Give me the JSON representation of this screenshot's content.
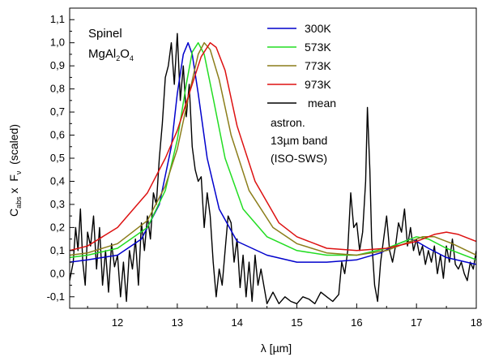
{
  "chart_data": {
    "type": "line",
    "title": "",
    "xlabel": "λ [µm]",
    "ylabel": {
      "main": "C",
      "sub1": "abs",
      "mid": " x  F",
      "sub2": "ν",
      "tail": "  (scaled)"
    },
    "xlim": [
      11.2,
      18
    ],
    "ylim": [
      -0.15,
      1.15
    ],
    "x_ticks": [
      12,
      13,
      14,
      15,
      16,
      17,
      18
    ],
    "y_ticks": [
      -0.1,
      0.0,
      0.1,
      0.2,
      0.3,
      0.4,
      0.5,
      0.6,
      0.7,
      0.8,
      0.9,
      1.0,
      1.1
    ],
    "y_tick_labels": [
      "-0,1",
      "0,0",
      "0,1",
      "0,2",
      "0,3",
      "0,4",
      "0,5",
      "0,6",
      "0,7",
      "0,8",
      "0,9",
      "1,0",
      "1,1"
    ],
    "annotation": {
      "line1": "Spinel",
      "formula_base": "MgAl",
      "formula_sub1": "2",
      "formula_mid": "O",
      "formula_sub2": "4"
    },
    "legend_note": [
      "astron.",
      "13µm band",
      "(ISO-SWS)"
    ],
    "series": [
      {
        "name": "300K",
        "color": "#0000cc",
        "x": [
          11.2,
          11.5,
          12.0,
          12.4,
          12.7,
          12.9,
          13.0,
          13.1,
          13.18,
          13.25,
          13.35,
          13.5,
          13.7,
          14.0,
          14.5,
          15.0,
          15.5,
          16.0,
          16.4,
          16.7,
          16.9,
          17.0,
          17.2,
          17.5,
          18.0
        ],
        "values": [
          0.05,
          0.06,
          0.08,
          0.15,
          0.3,
          0.55,
          0.78,
          0.95,
          1.0,
          0.95,
          0.78,
          0.5,
          0.28,
          0.14,
          0.08,
          0.05,
          0.05,
          0.06,
          0.09,
          0.13,
          0.15,
          0.14,
          0.11,
          0.07,
          0.04
        ]
      },
      {
        "name": "573K",
        "color": "#22dd22",
        "x": [
          11.2,
          11.5,
          12.0,
          12.5,
          12.8,
          13.0,
          13.15,
          13.25,
          13.35,
          13.45,
          13.6,
          13.8,
          14.1,
          14.5,
          15.0,
          15.5,
          16.0,
          16.5,
          16.8,
          17.0,
          17.2,
          17.5,
          18.0
        ],
        "values": [
          0.07,
          0.08,
          0.11,
          0.2,
          0.36,
          0.58,
          0.82,
          0.96,
          1.0,
          0.95,
          0.76,
          0.5,
          0.28,
          0.16,
          0.1,
          0.08,
          0.08,
          0.11,
          0.14,
          0.16,
          0.15,
          0.11,
          0.06
        ]
      },
      {
        "name": "773K",
        "color": "#8b7d1a",
        "x": [
          11.2,
          11.5,
          12.0,
          12.5,
          12.8,
          13.0,
          13.2,
          13.35,
          13.45,
          13.55,
          13.7,
          13.9,
          14.2,
          14.6,
          15.0,
          15.5,
          16.0,
          16.5,
          16.9,
          17.1,
          17.3,
          17.6,
          18.0
        ],
        "values": [
          0.08,
          0.09,
          0.13,
          0.23,
          0.38,
          0.54,
          0.78,
          0.95,
          1.0,
          0.97,
          0.84,
          0.6,
          0.36,
          0.2,
          0.13,
          0.09,
          0.08,
          0.1,
          0.14,
          0.16,
          0.16,
          0.13,
          0.08
        ]
      },
      {
        "name": "973K",
        "color": "#dd1111",
        "x": [
          11.2,
          11.5,
          12.0,
          12.5,
          12.8,
          13.0,
          13.2,
          13.4,
          13.55,
          13.65,
          13.8,
          14.0,
          14.3,
          14.7,
          15.0,
          15.5,
          16.0,
          16.5,
          17.0,
          17.3,
          17.5,
          17.7,
          18.0
        ],
        "values": [
          0.1,
          0.12,
          0.2,
          0.35,
          0.5,
          0.62,
          0.78,
          0.94,
          1.0,
          0.98,
          0.88,
          0.64,
          0.4,
          0.22,
          0.16,
          0.11,
          0.1,
          0.11,
          0.14,
          0.17,
          0.18,
          0.17,
          0.14
        ]
      },
      {
        "name": "mean",
        "color": "#000000",
        "x": [
          11.2,
          11.26,
          11.3,
          11.34,
          11.38,
          11.42,
          11.46,
          11.5,
          11.55,
          11.6,
          11.65,
          11.7,
          11.75,
          11.8,
          11.85,
          11.9,
          11.95,
          12.0,
          12.05,
          12.1,
          12.15,
          12.2,
          12.25,
          12.3,
          12.35,
          12.4,
          12.45,
          12.5,
          12.55,
          12.6,
          12.65,
          12.7,
          12.75,
          12.8,
          12.85,
          12.9,
          12.95,
          13.0,
          13.05,
          13.1,
          13.15,
          13.2,
          13.25,
          13.3,
          13.35,
          13.4,
          13.45,
          13.5,
          13.55,
          13.6,
          13.65,
          13.7,
          13.75,
          13.8,
          13.85,
          13.9,
          13.95,
          14.0,
          14.05,
          14.1,
          14.15,
          14.2,
          14.25,
          14.3,
          14.35,
          14.4,
          14.5,
          14.6,
          14.7,
          14.8,
          14.9,
          15.0,
          15.1,
          15.2,
          15.3,
          15.4,
          15.5,
          15.6,
          15.7,
          15.75,
          15.8,
          15.85,
          15.9,
          15.95,
          16.0,
          16.05,
          16.1,
          16.15,
          16.18,
          16.22,
          16.25,
          16.3,
          16.35,
          16.4,
          16.45,
          16.5,
          16.55,
          16.6,
          16.65,
          16.7,
          16.75,
          16.8,
          16.85,
          16.9,
          16.95,
          17.0,
          17.05,
          17.1,
          17.15,
          17.2,
          17.25,
          17.3,
          17.35,
          17.4,
          17.45,
          17.5,
          17.55,
          17.6,
          17.65,
          17.7,
          17.75,
          17.8,
          17.85,
          17.9,
          17.95,
          18.0
        ],
        "values": [
          -0.03,
          0.05,
          0.2,
          0.1,
          0.28,
          0.05,
          -0.05,
          0.18,
          0.12,
          0.25,
          0.02,
          0.2,
          -0.05,
          0.1,
          -0.08,
          0.13,
          0.03,
          0.08,
          -0.1,
          0.05,
          -0.12,
          0.1,
          0.02,
          0.15,
          -0.05,
          0.22,
          0.1,
          0.25,
          0.15,
          0.35,
          0.3,
          0.5,
          0.65,
          0.85,
          0.9,
          1.0,
          0.82,
          1.04,
          0.75,
          0.9,
          0.68,
          0.82,
          0.55,
          0.45,
          0.4,
          0.42,
          0.2,
          0.35,
          0.25,
          0.05,
          -0.1,
          0.02,
          -0.05,
          0.1,
          0.25,
          0.22,
          0.05,
          0.15,
          -0.06,
          0.08,
          -0.1,
          0.05,
          -0.12,
          0.08,
          -0.05,
          0.02,
          -0.13,
          -0.08,
          -0.13,
          -0.1,
          -0.12,
          -0.13,
          -0.1,
          -0.11,
          -0.13,
          -0.08,
          -0.1,
          -0.12,
          -0.09,
          0.05,
          0.0,
          0.1,
          0.35,
          0.2,
          0.22,
          0.1,
          0.18,
          0.4,
          0.72,
          0.45,
          0.15,
          -0.05,
          -0.12,
          0.05,
          0.15,
          0.25,
          0.1,
          0.05,
          0.12,
          0.22,
          0.18,
          0.28,
          0.12,
          0.2,
          0.1,
          0.15,
          0.08,
          0.12,
          0.04,
          0.1,
          0.05,
          0.12,
          0.0,
          0.08,
          -0.02,
          0.12,
          0.05,
          0.15,
          0.04,
          0.02,
          0.05,
          0.0,
          -0.03,
          0.05,
          0.02,
          0.1
        ]
      }
    ]
  }
}
